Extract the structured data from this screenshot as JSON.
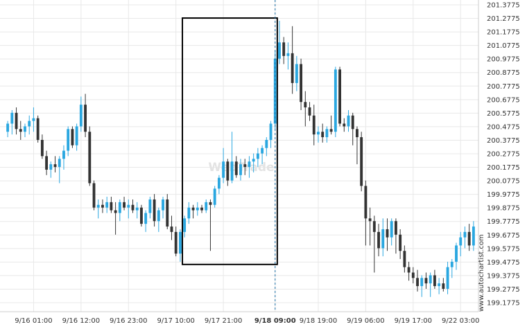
{
  "watermark": "WebTrade",
  "side_label": "www.autochartist.com",
  "chart_data": {
    "type": "candlestick",
    "y_ticks": [
      "201.3775",
      "201.2775",
      "201.1775",
      "201.0775",
      "200.9775",
      "200.8775",
      "200.7775",
      "200.6775",
      "200.5775",
      "200.4775",
      "200.3775",
      "200.2775",
      "200.1775",
      "200.0775",
      "199.9775",
      "199.8775",
      "199.7775",
      "199.6775",
      "199.5775",
      "199.4775",
      "199.3775",
      "199.2775",
      "199.1775"
    ],
    "ylim": [
      199.1775,
      201.3775
    ],
    "x_ticks": [
      {
        "label": "9/16 01:00",
        "index": 6
      },
      {
        "label": "9/16 12:00",
        "index": 17
      },
      {
        "label": "9/16 23:00",
        "index": 28
      },
      {
        "label": "9/17 10:00",
        "index": 39
      },
      {
        "label": "9/17 21:00",
        "index": 50
      },
      {
        "label": "9/18 09:00",
        "index": 62,
        "bold": true
      },
      {
        "label": "9/18 19:00",
        "index": 72
      },
      {
        "label": "9/19 06:00",
        "index": 83
      },
      {
        "label": "9/19 17:00",
        "index": 94
      },
      {
        "label": "9/22 03:00",
        "index": 105
      }
    ],
    "highlight_box": {
      "start_index": 41,
      "end_index": 62,
      "top": 201.28,
      "bottom": 199.46
    },
    "event_index": 62,
    "colors": {
      "up": "#2aa7e0",
      "down": "#333333",
      "box": "#000000",
      "grid": "#e8e8e8",
      "event_line": "#1a6fa6"
    },
    "candles": [
      {
        "o": 200.44,
        "h": 200.52,
        "l": 200.4,
        "c": 200.5
      },
      {
        "o": 200.5,
        "h": 200.6,
        "l": 200.42,
        "c": 200.58
      },
      {
        "o": 200.58,
        "h": 200.62,
        "l": 200.42,
        "c": 200.46
      },
      {
        "o": 200.46,
        "h": 200.52,
        "l": 200.38,
        "c": 200.44
      },
      {
        "o": 200.44,
        "h": 200.5,
        "l": 200.4,
        "c": 200.48
      },
      {
        "o": 200.48,
        "h": 200.56,
        "l": 200.42,
        "c": 200.52
      },
      {
        "o": 200.52,
        "h": 200.62,
        "l": 200.44,
        "c": 200.54
      },
      {
        "o": 200.54,
        "h": 200.56,
        "l": 200.36,
        "c": 200.38
      },
      {
        "o": 200.38,
        "h": 200.42,
        "l": 200.24,
        "c": 200.26
      },
      {
        "o": 200.26,
        "h": 200.3,
        "l": 200.12,
        "c": 200.16
      },
      {
        "o": 200.16,
        "h": 200.22,
        "l": 200.1,
        "c": 200.2
      },
      {
        "o": 200.2,
        "h": 200.26,
        "l": 200.14,
        "c": 200.18
      },
      {
        "o": 200.18,
        "h": 200.26,
        "l": 200.06,
        "c": 200.24
      },
      {
        "o": 200.24,
        "h": 200.34,
        "l": 200.16,
        "c": 200.3
      },
      {
        "o": 200.3,
        "h": 200.48,
        "l": 200.26,
        "c": 200.46
      },
      {
        "o": 200.46,
        "h": 200.48,
        "l": 200.32,
        "c": 200.34
      },
      {
        "o": 200.34,
        "h": 200.5,
        "l": 200.3,
        "c": 200.48
      },
      {
        "o": 200.48,
        "h": 200.7,
        "l": 200.44,
        "c": 200.64
      },
      {
        "o": 200.64,
        "h": 200.72,
        "l": 200.4,
        "c": 200.44
      },
      {
        "o": 200.44,
        "h": 200.48,
        "l": 200.04,
        "c": 200.06
      },
      {
        "o": 200.06,
        "h": 200.08,
        "l": 199.86,
        "c": 199.88
      },
      {
        "o": 199.88,
        "h": 199.94,
        "l": 199.8,
        "c": 199.9
      },
      {
        "o": 199.9,
        "h": 199.94,
        "l": 199.84,
        "c": 199.88
      },
      {
        "o": 199.88,
        "h": 199.96,
        "l": 199.84,
        "c": 199.92
      },
      {
        "o": 199.92,
        "h": 199.96,
        "l": 199.84,
        "c": 199.86
      },
      {
        "o": 199.86,
        "h": 199.92,
        "l": 199.68,
        "c": 199.84
      },
      {
        "o": 199.84,
        "h": 199.94,
        "l": 199.78,
        "c": 199.92
      },
      {
        "o": 199.92,
        "h": 199.96,
        "l": 199.86,
        "c": 199.88
      },
      {
        "o": 199.88,
        "h": 199.94,
        "l": 199.8,
        "c": 199.9
      },
      {
        "o": 199.9,
        "h": 199.94,
        "l": 199.84,
        "c": 199.86
      },
      {
        "o": 199.86,
        "h": 199.92,
        "l": 199.8,
        "c": 199.88
      },
      {
        "o": 199.88,
        "h": 199.9,
        "l": 199.74,
        "c": 199.76
      },
      {
        "o": 199.76,
        "h": 199.86,
        "l": 199.7,
        "c": 199.84
      },
      {
        "o": 199.84,
        "h": 199.96,
        "l": 199.8,
        "c": 199.94
      },
      {
        "o": 199.94,
        "h": 199.98,
        "l": 199.74,
        "c": 199.78
      },
      {
        "o": 199.78,
        "h": 199.88,
        "l": 199.7,
        "c": 199.86
      },
      {
        "o": 199.86,
        "h": 199.96,
        "l": 199.8,
        "c": 199.94
      },
      {
        "o": 199.94,
        "h": 199.98,
        "l": 199.72,
        "c": 199.74
      },
      {
        "o": 199.74,
        "h": 199.82,
        "l": 199.64,
        "c": 199.7
      },
      {
        "o": 199.7,
        "h": 199.74,
        "l": 199.52,
        "c": 199.54
      },
      {
        "o": 199.54,
        "h": 199.72,
        "l": 199.48,
        "c": 199.7
      },
      {
        "o": 199.7,
        "h": 199.82,
        "l": 199.66,
        "c": 199.8
      },
      {
        "o": 199.8,
        "h": 199.92,
        "l": 199.76,
        "c": 199.88
      },
      {
        "o": 199.88,
        "h": 199.9,
        "l": 199.8,
        "c": 199.86
      },
      {
        "o": 199.86,
        "h": 199.92,
        "l": 199.82,
        "c": 199.88
      },
      {
        "o": 199.88,
        "h": 199.9,
        "l": 199.84,
        "c": 199.86
      },
      {
        "o": 199.86,
        "h": 199.94,
        "l": 199.84,
        "c": 199.92
      },
      {
        "o": 199.92,
        "h": 199.94,
        "l": 199.56,
        "c": 199.9
      },
      {
        "o": 199.9,
        "h": 200.04,
        "l": 199.88,
        "c": 200.02
      },
      {
        "o": 200.02,
        "h": 200.12,
        "l": 199.98,
        "c": 200.1
      },
      {
        "o": 200.1,
        "h": 200.32,
        "l": 200.06,
        "c": 200.22
      },
      {
        "o": 200.22,
        "h": 200.24,
        "l": 200.04,
        "c": 200.08
      },
      {
        "o": 200.08,
        "h": 200.44,
        "l": 200.06,
        "c": 200.22
      },
      {
        "o": 200.22,
        "h": 200.26,
        "l": 200.1,
        "c": 200.12
      },
      {
        "o": 200.12,
        "h": 200.24,
        "l": 200.08,
        "c": 200.2
      },
      {
        "o": 200.2,
        "h": 200.24,
        "l": 200.12,
        "c": 200.18
      },
      {
        "o": 200.18,
        "h": 200.26,
        "l": 200.1,
        "c": 200.22
      },
      {
        "o": 200.22,
        "h": 200.28,
        "l": 200.14,
        "c": 200.24
      },
      {
        "o": 200.24,
        "h": 200.32,
        "l": 200.18,
        "c": 200.28
      },
      {
        "o": 200.28,
        "h": 200.34,
        "l": 200.2,
        "c": 200.32
      },
      {
        "o": 200.32,
        "h": 200.4,
        "l": 200.26,
        "c": 200.38
      },
      {
        "o": 200.38,
        "h": 200.52,
        "l": 200.32,
        "c": 200.5
      },
      {
        "o": 200.5,
        "h": 201.04,
        "l": 200.46,
        "c": 200.98
      },
      {
        "o": 200.98,
        "h": 201.26,
        "l": 200.94,
        "c": 201.1
      },
      {
        "o": 201.1,
        "h": 201.14,
        "l": 200.94,
        "c": 201.0
      },
      {
        "o": 201.0,
        "h": 201.1,
        "l": 200.9,
        "c": 201.02
      },
      {
        "o": 201.02,
        "h": 201.22,
        "l": 200.72,
        "c": 200.8
      },
      {
        "o": 200.8,
        "h": 201.0,
        "l": 200.74,
        "c": 200.94
      },
      {
        "o": 200.94,
        "h": 200.98,
        "l": 200.6,
        "c": 200.66
      },
      {
        "o": 200.66,
        "h": 200.74,
        "l": 200.48,
        "c": 200.62
      },
      {
        "o": 200.62,
        "h": 200.66,
        "l": 200.52,
        "c": 200.56
      },
      {
        "o": 200.56,
        "h": 200.64,
        "l": 200.34,
        "c": 200.42
      },
      {
        "o": 200.42,
        "h": 200.48,
        "l": 200.36,
        "c": 200.44
      },
      {
        "o": 200.44,
        "h": 200.5,
        "l": 200.36,
        "c": 200.4
      },
      {
        "o": 200.4,
        "h": 200.48,
        "l": 200.36,
        "c": 200.46
      },
      {
        "o": 200.46,
        "h": 200.56,
        "l": 200.42,
        "c": 200.44
      },
      {
        "o": 200.44,
        "h": 200.92,
        "l": 200.4,
        "c": 200.9
      },
      {
        "o": 200.9,
        "h": 200.92,
        "l": 200.48,
        "c": 200.5
      },
      {
        "o": 200.5,
        "h": 200.54,
        "l": 200.44,
        "c": 200.48
      },
      {
        "o": 200.48,
        "h": 200.6,
        "l": 200.44,
        "c": 200.56
      },
      {
        "o": 200.56,
        "h": 200.58,
        "l": 200.34,
        "c": 200.46
      },
      {
        "o": 200.46,
        "h": 200.48,
        "l": 200.2,
        "c": 200.4
      },
      {
        "o": 200.4,
        "h": 200.44,
        "l": 200.0,
        "c": 200.04
      },
      {
        "o": 200.04,
        "h": 200.08,
        "l": 199.6,
        "c": 199.8
      },
      {
        "o": 199.8,
        "h": 199.88,
        "l": 199.6,
        "c": 199.78
      },
      {
        "o": 199.78,
        "h": 199.82,
        "l": 199.4,
        "c": 199.7
      },
      {
        "o": 199.7,
        "h": 199.76,
        "l": 199.52,
        "c": 199.58
      },
      {
        "o": 199.58,
        "h": 199.8,
        "l": 199.52,
        "c": 199.72
      },
      {
        "o": 199.72,
        "h": 199.8,
        "l": 199.56,
        "c": 199.66
      },
      {
        "o": 199.66,
        "h": 199.8,
        "l": 199.6,
        "c": 199.78
      },
      {
        "o": 199.78,
        "h": 199.8,
        "l": 199.54,
        "c": 199.68
      },
      {
        "o": 199.68,
        "h": 199.72,
        "l": 199.5,
        "c": 199.56
      },
      {
        "o": 199.56,
        "h": 199.6,
        "l": 199.4,
        "c": 199.44
      },
      {
        "o": 199.44,
        "h": 199.48,
        "l": 199.34,
        "c": 199.4
      },
      {
        "o": 199.4,
        "h": 199.44,
        "l": 199.32,
        "c": 199.36
      },
      {
        "o": 199.36,
        "h": 199.42,
        "l": 199.26,
        "c": 199.3
      },
      {
        "o": 199.3,
        "h": 199.38,
        "l": 199.22,
        "c": 199.36
      },
      {
        "o": 199.36,
        "h": 199.4,
        "l": 199.28,
        "c": 199.32
      },
      {
        "o": 199.32,
        "h": 199.4,
        "l": 199.22,
        "c": 199.38
      },
      {
        "o": 199.38,
        "h": 199.42,
        "l": 199.28,
        "c": 199.3
      },
      {
        "o": 199.3,
        "h": 199.36,
        "l": 199.24,
        "c": 199.32
      },
      {
        "o": 199.32,
        "h": 199.36,
        "l": 199.26,
        "c": 199.28
      },
      {
        "o": 199.28,
        "h": 199.48,
        "l": 199.24,
        "c": 199.44
      },
      {
        "o": 199.44,
        "h": 199.5,
        "l": 199.36,
        "c": 199.48
      },
      {
        "o": 199.48,
        "h": 199.62,
        "l": 199.42,
        "c": 199.6
      },
      {
        "o": 199.6,
        "h": 199.7,
        "l": 199.52,
        "c": 199.66
      },
      {
        "o": 199.66,
        "h": 199.74,
        "l": 199.58,
        "c": 199.7
      },
      {
        "o": 199.7,
        "h": 199.76,
        "l": 199.56,
        "c": 199.6
      },
      {
        "o": 199.6,
        "h": 199.78,
        "l": 199.56,
        "c": 199.74
      }
    ]
  }
}
